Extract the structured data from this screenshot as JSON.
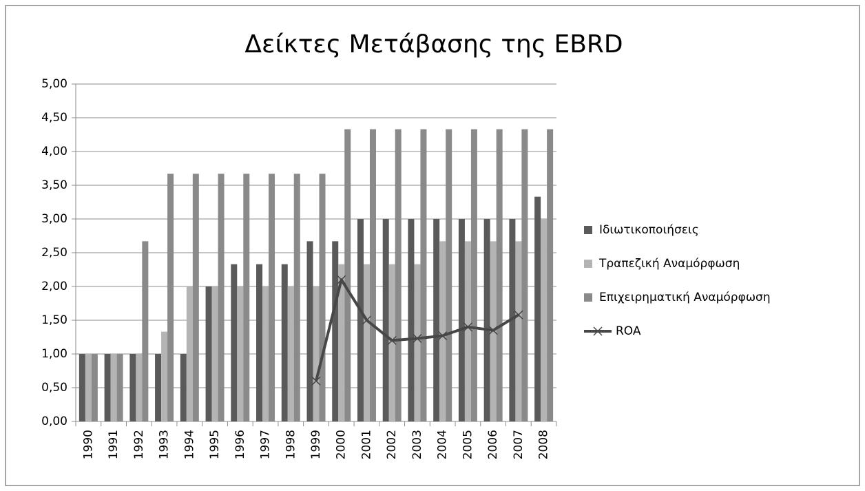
{
  "chart_data": {
    "type": "bar",
    "title": "Δείκτες Μετάβασης της EBRD",
    "categories": [
      "1990",
      "1991",
      "1992",
      "1993",
      "1994",
      "1995",
      "1996",
      "1997",
      "1998",
      "1999",
      "2000",
      "2001",
      "2002",
      "2003",
      "2004",
      "2005",
      "2006",
      "2007",
      "2008"
    ],
    "series": [
      {
        "name": "Ιδιωτικοποιήσεις",
        "color": "#5a5a5a",
        "type": "bar",
        "values": [
          1,
          1,
          1,
          1,
          1,
          2,
          2.33,
          2.33,
          2.33,
          2.67,
          2.67,
          3,
          3,
          3,
          3,
          3,
          3,
          3,
          3.33
        ]
      },
      {
        "name": "Τραπεζική Αναμόρφωση",
        "color": "#b4b4b4",
        "type": "bar",
        "values": [
          1,
          1,
          1,
          1.33,
          2,
          2,
          2,
          2,
          2,
          2,
          2.33,
          2.33,
          2.33,
          2.33,
          2.67,
          2.67,
          2.67,
          2.67,
          3
        ]
      },
      {
        "name": "Επιχειρηματική Αναμόρφωση",
        "color": "#8a8a8a",
        "type": "bar",
        "values": [
          1,
          1,
          2.67,
          3.67,
          3.67,
          3.67,
          3.67,
          3.67,
          3.67,
          3.67,
          4.33,
          4.33,
          4.33,
          4.33,
          4.33,
          4.33,
          4.33,
          4.33,
          4.33
        ]
      },
      {
        "name": "ROA",
        "color": "#474747",
        "type": "line",
        "values": [
          null,
          null,
          null,
          null,
          null,
          null,
          null,
          null,
          null,
          0.6,
          2.1,
          1.5,
          1.2,
          1.23,
          1.27,
          1.4,
          1.35,
          1.58,
          null
        ]
      }
    ],
    "ylim": [
      0,
      5
    ],
    "yticks": [
      {
        "value": 0,
        "label": "0,00"
      },
      {
        "value": 0.5,
        "label": "0,50"
      },
      {
        "value": 1,
        "label": "1,00"
      },
      {
        "value": 1.5,
        "label": "1,50"
      },
      {
        "value": 2,
        "label": "2,00"
      },
      {
        "value": 2.5,
        "label": "2,50"
      },
      {
        "value": 3,
        "label": "3,00"
      },
      {
        "value": 3.5,
        "label": "3,50"
      },
      {
        "value": 4,
        "label": "4,00"
      },
      {
        "value": 4.5,
        "label": "4,50"
      },
      {
        "value": 5,
        "label": "5,00"
      }
    ],
    "grid": true,
    "legend": "right"
  }
}
